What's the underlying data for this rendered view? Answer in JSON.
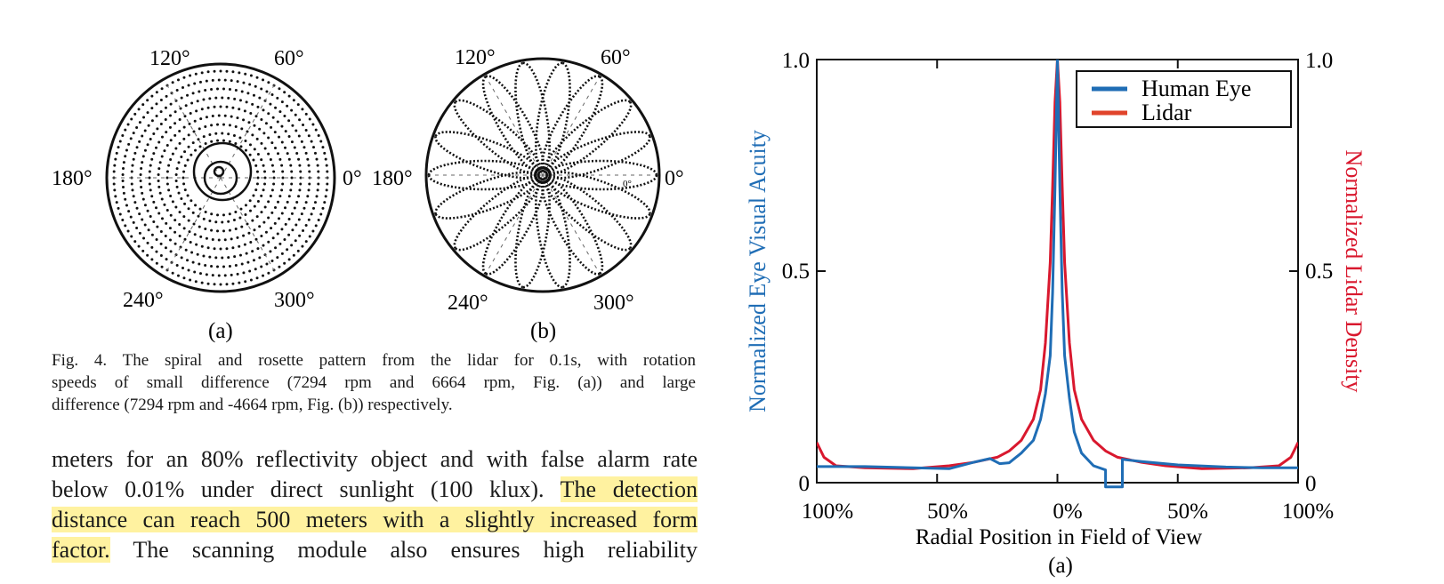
{
  "polar_a": {
    "sublabel": "(a)",
    "angles": {
      "a120": "120°",
      "a60": "60°",
      "a180": "180°",
      "a0": "0°",
      "a240": "240°",
      "a300": "300°"
    }
  },
  "polar_b": {
    "sublabel": "(b)",
    "angles": {
      "a120": "120°",
      "a60": "60°",
      "a180": "180°",
      "a0": "0°",
      "a240": "240°",
      "a300": "300°"
    },
    "inner_tick": "0°"
  },
  "caption": {
    "line1": "Fig. 4.    The spiral and rosette pattern from the lidar for 0.1s, with rotation",
    "line2": "speeds of small difference (7294 rpm and 6664 rpm, Fig. (a)) and large",
    "line3": "difference (7294 rpm and -4664 rpm, Fig. (b)) respectively."
  },
  "body": {
    "line1": "meters for an 80% reflectivity object and with false alarm rate",
    "line2_plain": "below 0.01% under direct sunlight (100 klux). ",
    "line2_hl": "The detection",
    "line3_hl": "distance can reach 500 meters with a slightly increased form",
    "line4_hl": "factor.",
    "line4_plain": " The scanning module also ensures high reliability"
  },
  "colors": {
    "eye": "#1f6db5",
    "lidar": "#d9182e",
    "highlight": "#fff2a0"
  },
  "chart_data": {
    "type": "line",
    "xlabel": "Radial Position in Field of View",
    "ylabel_left": "Normalized Eye Visual Acuity",
    "ylabel_right": "Normalized Lidar Density",
    "sublabel": "(a)",
    "x_tick_labels": [
      "100%",
      "50%",
      "0%",
      "50%",
      "100%"
    ],
    "x_range": [
      -100,
      100
    ],
    "y_left_ticks": [
      "0",
      "0.5",
      "1.0"
    ],
    "y_right_ticks": [
      "0",
      "0.5",
      "1.0"
    ],
    "ylim": [
      0,
      1
    ],
    "legend_position": "top-right",
    "series": [
      {
        "name": "Human Eye",
        "color": "#1f6db5",
        "x": [
          -100,
          -80,
          -60,
          -45,
          -35,
          -28,
          -24,
          -20,
          -15,
          -10,
          -7,
          -5,
          -3,
          -2,
          -1,
          0,
          1,
          2,
          3,
          5,
          7,
          10,
          15,
          20,
          20,
          27,
          27,
          35,
          50,
          70,
          85,
          100
        ],
        "y": [
          0.038,
          0.038,
          0.035,
          0.033,
          0.048,
          0.057,
          0.045,
          0.047,
          0.07,
          0.1,
          0.15,
          0.21,
          0.3,
          0.45,
          0.7,
          1.0,
          0.7,
          0.45,
          0.3,
          0.2,
          0.12,
          0.07,
          0.04,
          0.03,
          -0.01,
          -0.01,
          0.055,
          0.05,
          0.042,
          0.037,
          0.035,
          0.035
        ]
      },
      {
        "name": "Lidar",
        "color": "#d9182e",
        "x": [
          -100,
          -97,
          -92,
          -80,
          -60,
          -45,
          -35,
          -25,
          -20,
          -15,
          -10,
          -7,
          -5,
          -3,
          -2,
          -1,
          0,
          1,
          2,
          3,
          5,
          7,
          10,
          15,
          20,
          25,
          35,
          45,
          60,
          80,
          92,
          97,
          100
        ],
        "y": [
          0.095,
          0.06,
          0.04,
          0.035,
          0.033,
          0.04,
          0.048,
          0.06,
          0.075,
          0.1,
          0.15,
          0.22,
          0.33,
          0.52,
          0.7,
          0.9,
          1.0,
          0.9,
          0.7,
          0.52,
          0.33,
          0.22,
          0.15,
          0.1,
          0.075,
          0.06,
          0.048,
          0.04,
          0.033,
          0.035,
          0.04,
          0.06,
          0.095
        ]
      }
    ]
  }
}
